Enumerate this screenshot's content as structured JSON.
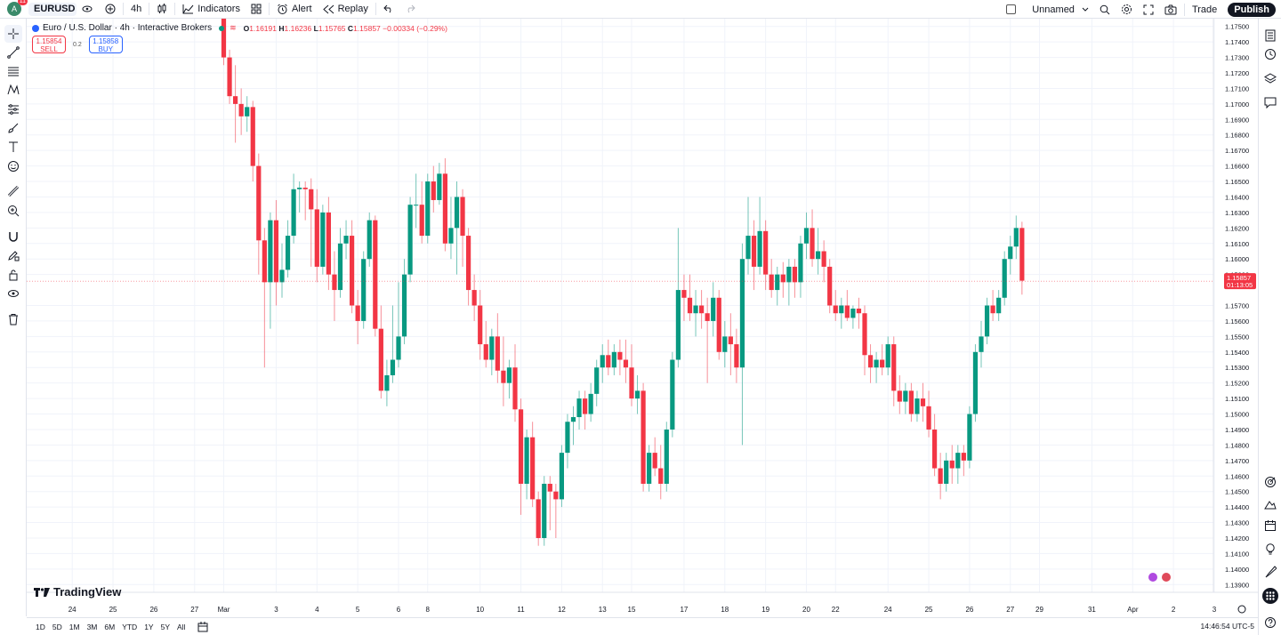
{
  "topbar": {
    "avatar_letter": "A",
    "notification_count": "11",
    "symbol": "EURUSD",
    "interval": "4h",
    "indicators_label": "Indicators",
    "alert_label": "Alert",
    "replay_label": "Replay",
    "layout_name": "Unnamed",
    "trade_label": "Trade",
    "publish_label": "Publish"
  },
  "legend": {
    "title": "Euro / U.S. Dollar · 4h · Interactive Brokers",
    "open_label": "O",
    "open": "1.16191",
    "high_label": "H",
    "high": "1.16236",
    "low_label": "L",
    "low": "1.15765",
    "close_label": "C",
    "close": "1.15857",
    "change": "−0.00334 (−0.29%)",
    "sell_price": "1.15854",
    "sell_label": "SELL",
    "spread": "0.2",
    "buy_price": "1.15858",
    "buy_label": "BUY"
  },
  "branding": {
    "logo_text": "TradingView"
  },
  "bottombar": {
    "ranges": [
      "1D",
      "5D",
      "1M",
      "3M",
      "6M",
      "YTD",
      "1Y",
      "5Y",
      "All"
    ],
    "time": "14:46:54 UTC-5"
  },
  "colors": {
    "up": "#089981",
    "down": "#f23645",
    "accent": "#2962ff"
  },
  "chart_data": {
    "type": "candlestick",
    "y_ticks": [
      "1.17500",
      "1.17400",
      "1.17300",
      "1.17200",
      "1.17100",
      "1.17000",
      "1.16900",
      "1.16800",
      "1.16700",
      "1.16600",
      "1.16500",
      "1.16400",
      "1.16300",
      "1.16200",
      "1.16100",
      "1.16000",
      "1.15900",
      "1.15700",
      "1.15600",
      "1.15500",
      "1.15400",
      "1.15300",
      "1.15200",
      "1.15100",
      "1.15000",
      "1.14900",
      "1.14800",
      "1.14700",
      "1.14600",
      "1.14500",
      "1.14400",
      "1.14300",
      "1.14200",
      "1.14100",
      "1.14000",
      "1.13900"
    ],
    "ylim": [
      1.1385,
      1.1755
    ],
    "x_labels": [
      {
        "label": "24",
        "bar": -26
      },
      {
        "label": "25",
        "bar": -19
      },
      {
        "label": "26",
        "bar": -12
      },
      {
        "label": "27",
        "bar": -5
      },
      {
        "label": "Mar",
        "bar": 0
      },
      {
        "label": "3",
        "bar": 9
      },
      {
        "label": "4",
        "bar": 16
      },
      {
        "label": "5",
        "bar": 23
      },
      {
        "label": "6",
        "bar": 30
      },
      {
        "label": "8",
        "bar": 35
      },
      {
        "label": "10",
        "bar": 44
      },
      {
        "label": "11",
        "bar": 51
      },
      {
        "label": "12",
        "bar": 58
      },
      {
        "label": "13",
        "bar": 65
      },
      {
        "label": "15",
        "bar": 70
      },
      {
        "label": "17",
        "bar": 79
      },
      {
        "label": "18",
        "bar": 86
      },
      {
        "label": "19",
        "bar": 93
      },
      {
        "label": "20",
        "bar": 100
      },
      {
        "label": "22",
        "bar": 105
      },
      {
        "label": "24",
        "bar": 114
      },
      {
        "label": "25",
        "bar": 121
      },
      {
        "label": "26",
        "bar": 128
      },
      {
        "label": "27",
        "bar": 135
      },
      {
        "label": "29",
        "bar": 140
      },
      {
        "label": "31",
        "bar": 149
      },
      {
        "label": "Apr",
        "bar": 156
      },
      {
        "label": "2",
        "bar": 163
      },
      {
        "label": "3",
        "bar": 170
      }
    ],
    "current_price": "1.15857",
    "countdown": "01:13:05",
    "candles": [
      [
        1.1764,
        1.1768,
        1.1725,
        1.173
      ],
      [
        1.173,
        1.1735,
        1.17,
        1.1705
      ],
      [
        1.1705,
        1.1725,
        1.1675,
        1.17
      ],
      [
        1.17,
        1.171,
        1.168,
        1.1692
      ],
      [
        1.1692,
        1.1705,
        1.1682,
        1.1698
      ],
      [
        1.1698,
        1.1702,
        1.165,
        1.166
      ],
      [
        1.166,
        1.1668,
        1.159,
        1.1612
      ],
      [
        1.1612,
        1.162,
        1.153,
        1.1585
      ],
      [
        1.1585,
        1.163,
        1.1555,
        1.1625
      ],
      [
        1.1625,
        1.1638,
        1.157,
        1.1585
      ],
      [
        1.1585,
        1.161,
        1.1575,
        1.1593
      ],
      [
        1.1593,
        1.1625,
        1.1588,
        1.1615
      ],
      [
        1.1615,
        1.1655,
        1.161,
        1.1645
      ],
      [
        1.1645,
        1.165,
        1.163,
        1.1646
      ],
      [
        1.1646,
        1.165,
        1.1625,
        1.1645
      ],
      [
        1.1645,
        1.1652,
        1.1595,
        1.1632
      ],
      [
        1.1632,
        1.1645,
        1.1585,
        1.1595
      ],
      [
        1.1595,
        1.1635,
        1.159,
        1.163
      ],
      [
        1.163,
        1.164,
        1.158,
        1.159
      ],
      [
        1.159,
        1.1605,
        1.156,
        1.158
      ],
      [
        1.158,
        1.162,
        1.1575,
        1.161
      ],
      [
        1.161,
        1.1625,
        1.16,
        1.1615
      ],
      [
        1.1615,
        1.1625,
        1.1565,
        1.157
      ],
      [
        1.157,
        1.158,
        1.1545,
        1.156
      ],
      [
        1.156,
        1.1605,
        1.1555,
        1.16
      ],
      [
        1.16,
        1.163,
        1.1595,
        1.1625
      ],
      [
        1.1625,
        1.1628,
        1.155,
        1.1555
      ],
      [
        1.1555,
        1.157,
        1.151,
        1.1515
      ],
      [
        1.1515,
        1.1535,
        1.1505,
        1.1525
      ],
      [
        1.1525,
        1.157,
        1.152,
        1.1535
      ],
      [
        1.1535,
        1.1585,
        1.153,
        1.155
      ],
      [
        1.155,
        1.16,
        1.1545,
        1.159
      ],
      [
        1.159,
        1.164,
        1.1585,
        1.1635
      ],
      [
        1.1635,
        1.1655,
        1.162,
        1.1635
      ],
      [
        1.1635,
        1.165,
        1.161,
        1.1615
      ],
      [
        1.1615,
        1.1655,
        1.161,
        1.165
      ],
      [
        1.165,
        1.166,
        1.163,
        1.1638
      ],
      [
        1.1638,
        1.1662,
        1.1635,
        1.1655
      ],
      [
        1.1655,
        1.1665,
        1.1605,
        1.161
      ],
      [
        1.161,
        1.164,
        1.16,
        1.162
      ],
      [
        1.162,
        1.165,
        1.159,
        1.164
      ],
      [
        1.164,
        1.1645,
        1.1595,
        1.1615
      ],
      [
        1.1615,
        1.162,
        1.157,
        1.158
      ],
      [
        1.158,
        1.159,
        1.156,
        1.157
      ],
      [
        1.157,
        1.158,
        1.1535,
        1.1545
      ],
      [
        1.1545,
        1.156,
        1.153,
        1.1535
      ],
      [
        1.1535,
        1.1555,
        1.1525,
        1.155
      ],
      [
        1.155,
        1.1565,
        1.152,
        1.1528
      ],
      [
        1.1528,
        1.155,
        1.1505,
        1.152
      ],
      [
        1.152,
        1.1535,
        1.151,
        1.153
      ],
      [
        1.153,
        1.1545,
        1.1495,
        1.1503
      ],
      [
        1.1503,
        1.151,
        1.1435,
        1.1455
      ],
      [
        1.1455,
        1.149,
        1.1445,
        1.1485
      ],
      [
        1.1485,
        1.1495,
        1.144,
        1.1445
      ],
      [
        1.1445,
        1.145,
        1.1415,
        1.142
      ],
      [
        1.142,
        1.146,
        1.1415,
        1.1455
      ],
      [
        1.1455,
        1.146,
        1.1425,
        1.145
      ],
      [
        1.145,
        1.1455,
        1.142,
        1.1445
      ],
      [
        1.1445,
        1.148,
        1.144,
        1.1475
      ],
      [
        1.1475,
        1.15,
        1.1465,
        1.1495
      ],
      [
        1.1495,
        1.1505,
        1.148,
        1.1498
      ],
      [
        1.1498,
        1.1515,
        1.149,
        1.151
      ],
      [
        1.151,
        1.1515,
        1.149,
        1.15
      ],
      [
        1.15,
        1.152,
        1.1495,
        1.1513
      ],
      [
        1.1513,
        1.1535,
        1.1505,
        1.153
      ],
      [
        1.153,
        1.1545,
        1.152,
        1.1538
      ],
      [
        1.1538,
        1.1548,
        1.1525,
        1.153
      ],
      [
        1.153,
        1.1545,
        1.1525,
        1.154
      ],
      [
        1.154,
        1.1548,
        1.1525,
        1.1535
      ],
      [
        1.1535,
        1.1548,
        1.152,
        1.153
      ],
      [
        1.153,
        1.1545,
        1.1505,
        1.151
      ],
      [
        1.151,
        1.1525,
        1.15,
        1.1515
      ],
      [
        1.1515,
        1.152,
        1.145,
        1.1455
      ],
      [
        1.1455,
        1.148,
        1.145,
        1.1475
      ],
      [
        1.1475,
        1.1485,
        1.146,
        1.1465
      ],
      [
        1.1465,
        1.148,
        1.1445,
        1.1455
      ],
      [
        1.1455,
        1.1495,
        1.145,
        1.149
      ],
      [
        1.149,
        1.154,
        1.1485,
        1.1535
      ],
      [
        1.1535,
        1.162,
        1.153,
        1.158
      ],
      [
        1.158,
        1.159,
        1.156,
        1.1575
      ],
      [
        1.1575,
        1.159,
        1.156,
        1.1565
      ],
      [
        1.1565,
        1.158,
        1.155,
        1.157
      ],
      [
        1.157,
        1.158,
        1.1555,
        1.1565
      ],
      [
        1.1565,
        1.1575,
        1.152,
        1.156
      ],
      [
        1.156,
        1.1585,
        1.155,
        1.1575
      ],
      [
        1.1575,
        1.158,
        1.1535,
        1.154
      ],
      [
        1.154,
        1.156,
        1.153,
        1.155
      ],
      [
        1.155,
        1.1565,
        1.1525,
        1.1545
      ],
      [
        1.1545,
        1.1555,
        1.152,
        1.153
      ],
      [
        1.153,
        1.161,
        1.148,
        1.16
      ],
      [
        1.16,
        1.164,
        1.159,
        1.1615
      ],
      [
        1.1615,
        1.1625,
        1.158,
        1.1595
      ],
      [
        1.1595,
        1.164,
        1.159,
        1.1618
      ],
      [
        1.1618,
        1.1625,
        1.158,
        1.159
      ],
      [
        1.159,
        1.16,
        1.1575,
        1.158
      ],
      [
        1.158,
        1.1595,
        1.157,
        1.159
      ],
      [
        1.159,
        1.1598,
        1.1575,
        1.1585
      ],
      [
        1.1585,
        1.16,
        1.157,
        1.1595
      ],
      [
        1.1595,
        1.16,
        1.1575,
        1.1585
      ],
      [
        1.1585,
        1.1615,
        1.1575,
        1.161
      ],
      [
        1.161,
        1.163,
        1.16,
        1.162
      ],
      [
        1.162,
        1.1632,
        1.1595,
        1.16
      ],
      [
        1.16,
        1.162,
        1.159,
        1.1605
      ],
      [
        1.1605,
        1.1612,
        1.1585,
        1.1595
      ],
      [
        1.1595,
        1.16,
        1.1565,
        1.157
      ],
      [
        1.157,
        1.158,
        1.156,
        1.1565
      ],
      [
        1.1565,
        1.1575,
        1.1555,
        1.157
      ],
      [
        1.157,
        1.158,
        1.156,
        1.1562
      ],
      [
        1.1562,
        1.157,
        1.1555,
        1.1568
      ],
      [
        1.1568,
        1.1575,
        1.1555,
        1.1565
      ],
      [
        1.1565,
        1.157,
        1.1525,
        1.1538
      ],
      [
        1.1538,
        1.1545,
        1.152,
        1.153
      ],
      [
        1.153,
        1.154,
        1.152,
        1.1535
      ],
      [
        1.1535,
        1.1545,
        1.1525,
        1.153
      ],
      [
        1.153,
        1.155,
        1.1525,
        1.1545
      ],
      [
        1.1545,
        1.155,
        1.1505,
        1.1515
      ],
      [
        1.1515,
        1.1525,
        1.15,
        1.1508
      ],
      [
        1.1508,
        1.152,
        1.15,
        1.1515
      ],
      [
        1.1515,
        1.152,
        1.1495,
        1.15
      ],
      [
        1.15,
        1.1515,
        1.1495,
        1.151
      ],
      [
        1.151,
        1.152,
        1.1495,
        1.1505
      ],
      [
        1.1505,
        1.1515,
        1.1485,
        1.149
      ],
      [
        1.149,
        1.15,
        1.146,
        1.1465
      ],
      [
        1.1465,
        1.1475,
        1.1445,
        1.1455
      ],
      [
        1.1455,
        1.1475,
        1.145,
        1.147
      ],
      [
        1.147,
        1.148,
        1.1455,
        1.1465
      ],
      [
        1.1465,
        1.148,
        1.1455,
        1.1475
      ],
      [
        1.1475,
        1.148,
        1.146,
        1.147
      ],
      [
        1.147,
        1.1505,
        1.1465,
        1.15
      ],
      [
        1.15,
        1.1545,
        1.1495,
        1.154
      ],
      [
        1.154,
        1.156,
        1.153,
        1.155
      ],
      [
        1.155,
        1.1575,
        1.1545,
        1.157
      ],
      [
        1.157,
        1.158,
        1.156,
        1.1565
      ],
      [
        1.1565,
        1.158,
        1.156,
        1.1575
      ],
      [
        1.1575,
        1.1605,
        1.157,
        1.16
      ],
      [
        1.16,
        1.1615,
        1.159,
        1.1608
      ],
      [
        1.1608,
        1.1628,
        1.16,
        1.162
      ],
      [
        1.162,
        1.1624,
        1.1577,
        1.1586
      ]
    ]
  }
}
